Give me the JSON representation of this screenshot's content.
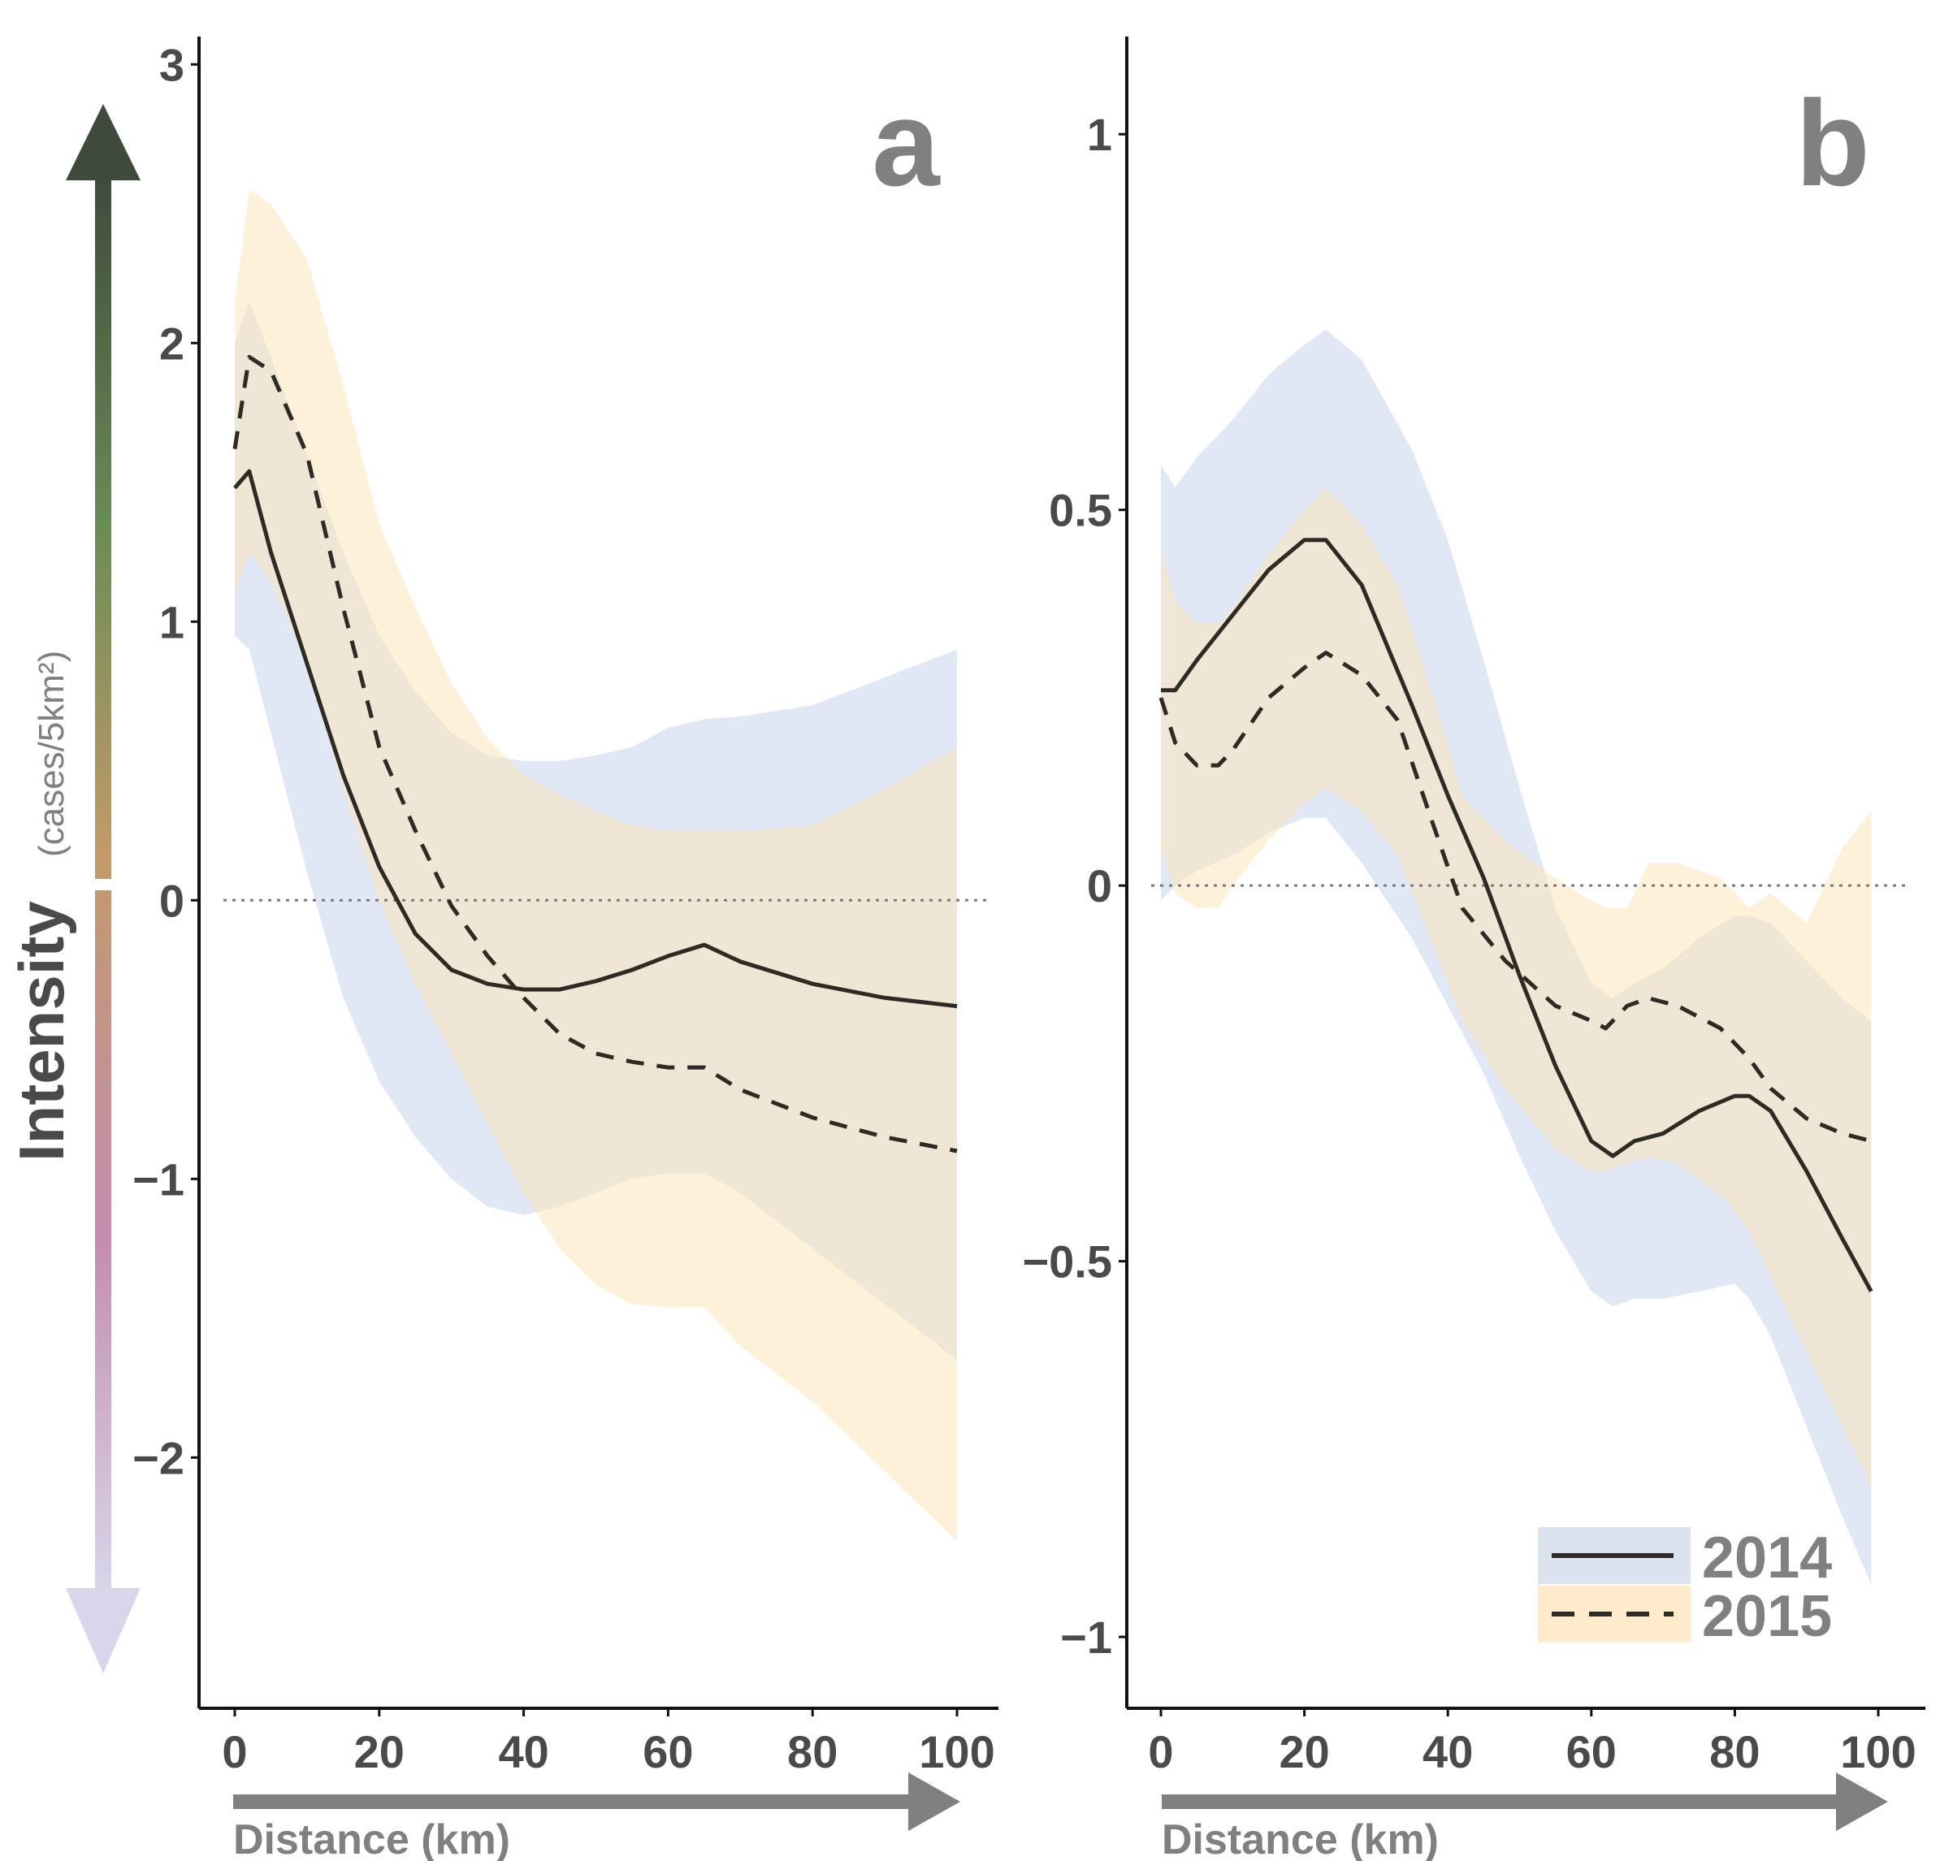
{
  "colors": {
    "band_2014": "#b8c9e6",
    "band_2015": "#fde3b5",
    "line": "#2e2a24",
    "axis_text": "#4a4a4a",
    "label_grey": "#808080",
    "arrow_top": "#3f4a3c",
    "arrow_bottom": "#d8d6ea"
  },
  "ylabel": {
    "main": "Intensity",
    "unit": "(cases/5km²)"
  },
  "legend": {
    "labels": [
      "2014",
      "2015"
    ],
    "placement": "bottom-right of panel b"
  },
  "chart_data": [
    {
      "type": "line",
      "panel": "a",
      "xlabel": "Distance (km)",
      "x_ticks": [
        "0",
        "20",
        "40",
        "60",
        "80",
        "100"
      ],
      "y_ticks": [
        "3",
        "2",
        "1",
        "0",
        "−1",
        "−2"
      ],
      "ylim": [
        -2.9,
        3.1
      ],
      "xlim": [
        -5,
        105
      ],
      "reference_line_y": 0,
      "series": [
        {
          "name": "2014",
          "style": "solid",
          "x": [
            0,
            2,
            5,
            10,
            15,
            20,
            25,
            30,
            35,
            40,
            45,
            50,
            55,
            60,
            65,
            70,
            80,
            90,
            100
          ],
          "y": [
            1.48,
            1.54,
            1.25,
            0.85,
            0.45,
            0.12,
            -0.12,
            -0.25,
            -0.3,
            -0.32,
            -0.32,
            -0.29,
            -0.25,
            -0.2,
            -0.16,
            -0.22,
            -0.3,
            -0.35,
            -0.38
          ],
          "lower": [
            0.95,
            0.9,
            0.6,
            0.1,
            -0.35,
            -0.65,
            -0.85,
            -1.0,
            -1.1,
            -1.13,
            -1.1,
            -1.05,
            -1.0,
            -0.98,
            -0.98,
            -1.05,
            -1.25,
            -1.45,
            -1.65
          ],
          "upper": [
            2.0,
            2.15,
            1.95,
            1.6,
            1.25,
            0.95,
            0.75,
            0.6,
            0.52,
            0.5,
            0.5,
            0.52,
            0.55,
            0.62,
            0.65,
            0.66,
            0.7,
            0.8,
            0.9
          ]
        },
        {
          "name": "2015",
          "style": "dashed",
          "x": [
            0,
            2,
            5,
            10,
            15,
            20,
            25,
            30,
            35,
            40,
            45,
            50,
            55,
            60,
            65,
            70,
            80,
            90,
            100
          ],
          "y": [
            1.62,
            1.95,
            1.9,
            1.6,
            1.05,
            0.55,
            0.25,
            -0.02,
            -0.2,
            -0.35,
            -0.48,
            -0.55,
            -0.58,
            -0.6,
            -0.6,
            -0.68,
            -0.78,
            -0.85,
            -0.9
          ],
          "lower": [
            1.1,
            1.25,
            1.15,
            0.85,
            0.4,
            0.0,
            -0.3,
            -0.55,
            -0.8,
            -1.05,
            -1.25,
            -1.38,
            -1.45,
            -1.46,
            -1.46,
            -1.6,
            -1.8,
            -2.05,
            -2.3
          ],
          "upper": [
            2.15,
            2.55,
            2.5,
            2.3,
            1.85,
            1.35,
            1.05,
            0.78,
            0.58,
            0.45,
            0.38,
            0.32,
            0.27,
            0.25,
            0.25,
            0.25,
            0.27,
            0.4,
            0.55
          ]
        }
      ]
    },
    {
      "type": "line",
      "panel": "b",
      "xlabel": "Distance (km)",
      "x_ticks": [
        "0",
        "20",
        "40",
        "60",
        "80",
        "100"
      ],
      "y_ticks": [
        "1",
        "0.5",
        "0",
        "−0.5",
        "−1"
      ],
      "ylim": [
        -1.095,
        1.13
      ],
      "xlim": [
        -5,
        105
      ],
      "reference_line_y": 0,
      "series": [
        {
          "name": "2014",
          "style": "solid",
          "x": [
            0,
            2,
            5,
            10,
            15,
            20,
            23,
            28,
            35,
            40,
            45,
            50,
            55,
            60,
            63,
            66,
            70,
            75,
            80,
            82,
            85,
            90,
            95,
            99
          ],
          "y": [
            0.26,
            0.26,
            0.3,
            0.36,
            0.42,
            0.46,
            0.46,
            0.4,
            0.24,
            0.12,
            0.01,
            -0.12,
            -0.24,
            -0.34,
            -0.36,
            -0.34,
            -0.33,
            -0.3,
            -0.28,
            -0.28,
            -0.3,
            -0.38,
            -0.47,
            -0.54
          ],
          "lower": [
            -0.02,
            0.0,
            0.02,
            0.04,
            0.07,
            0.09,
            0.09,
            0.03,
            -0.07,
            -0.16,
            -0.25,
            -0.36,
            -0.46,
            -0.54,
            -0.56,
            -0.55,
            -0.55,
            -0.54,
            -0.53,
            -0.55,
            -0.6,
            -0.72,
            -0.84,
            -0.93
          ],
          "upper": [
            0.56,
            0.53,
            0.57,
            0.62,
            0.68,
            0.72,
            0.74,
            0.7,
            0.58,
            0.46,
            0.3,
            0.13,
            -0.03,
            -0.13,
            -0.15,
            -0.13,
            -0.11,
            -0.07,
            -0.04,
            -0.04,
            -0.05,
            -0.1,
            -0.15,
            -0.18
          ]
        },
        {
          "name": "2015",
          "style": "dashed",
          "x": [
            0,
            2,
            5,
            8,
            10,
            15,
            20,
            23,
            28,
            33,
            38,
            42,
            48,
            55,
            60,
            62,
            65,
            68,
            72,
            78,
            82,
            85,
            90,
            95,
            99
          ],
          "y": [
            0.25,
            0.19,
            0.16,
            0.16,
            0.18,
            0.25,
            0.29,
            0.31,
            0.28,
            0.22,
            0.08,
            -0.03,
            -0.1,
            -0.16,
            -0.18,
            -0.19,
            -0.16,
            -0.15,
            -0.16,
            -0.19,
            -0.23,
            -0.27,
            -0.31,
            -0.33,
            -0.34
          ],
          "lower": [
            0.05,
            -0.01,
            -0.03,
            -0.03,
            0.0,
            0.06,
            0.11,
            0.13,
            0.1,
            0.04,
            -0.08,
            -0.18,
            -0.27,
            -0.35,
            -0.38,
            -0.38,
            -0.37,
            -0.36,
            -0.37,
            -0.41,
            -0.46,
            -0.52,
            -0.62,
            -0.72,
            -0.8
          ],
          "upper": [
            0.45,
            0.38,
            0.35,
            0.35,
            0.37,
            0.44,
            0.5,
            0.53,
            0.48,
            0.4,
            0.25,
            0.12,
            0.06,
            0.01,
            -0.02,
            -0.03,
            -0.03,
            0.03,
            0.03,
            0.01,
            -0.03,
            -0.01,
            -0.05,
            0.05,
            0.1
          ]
        }
      ]
    }
  ]
}
